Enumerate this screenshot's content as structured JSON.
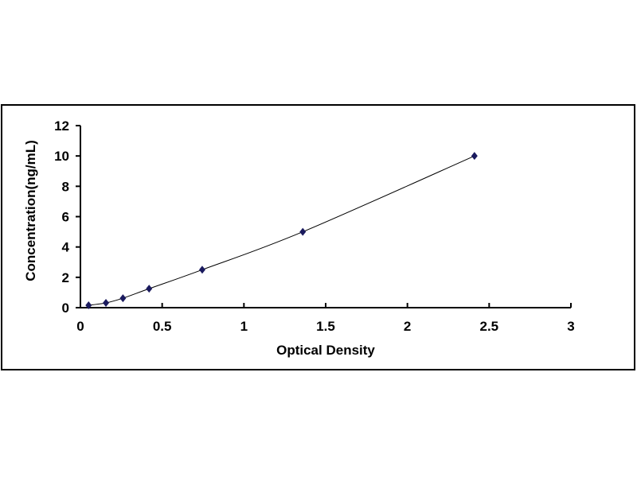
{
  "chart_data": {
    "type": "scatter",
    "title": "",
    "xlabel": "Optical Density",
    "ylabel": "Concentration(ng/mL)",
    "xlim": [
      0,
      3
    ],
    "ylim": [
      0,
      12
    ],
    "xticks": [
      0,
      0.5,
      1,
      1.5,
      2,
      2.5,
      3
    ],
    "xtick_labels": [
      "0",
      "0.5",
      "1",
      "1.5",
      "2",
      "2.5",
      "3"
    ],
    "yticks": [
      0,
      2,
      4,
      6,
      8,
      10,
      12
    ],
    "ytick_labels": [
      "0",
      "2",
      "4",
      "6",
      "8",
      "10",
      "12"
    ],
    "grid": false,
    "legend": "none",
    "trendline": "smooth curve through points",
    "marker": "diamond",
    "marker_color": "#1a1a5e",
    "line_color": "#000000",
    "series": [
      {
        "x": [
          0.05,
          0.156,
          0.26,
          0.42,
          0.745,
          1.36,
          2.41
        ],
        "y": [
          0.156,
          0.312,
          0.625,
          1.25,
          2.5,
          5,
          10
        ]
      }
    ]
  }
}
